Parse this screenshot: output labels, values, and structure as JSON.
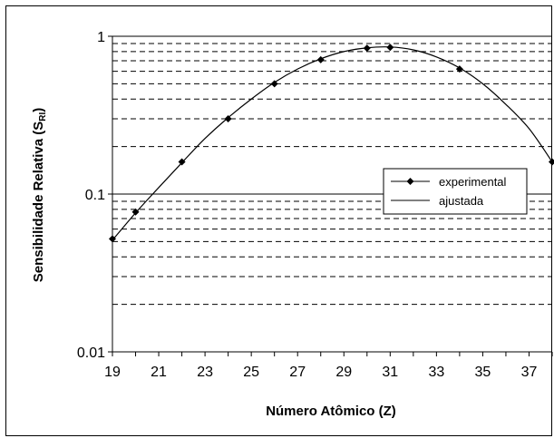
{
  "chart_data": {
    "type": "scatter",
    "xlabel": "Número Atômico (Z)",
    "ylabel_main": "Sensibilidade Relativa (S",
    "ylabel_sub": "RI",
    "ylabel_close": ")",
    "x_ticks": [
      "19",
      "21",
      "23",
      "25",
      "27",
      "29",
      "31",
      "33",
      "35",
      "37"
    ],
    "y_ticks": [
      "0.01",
      "0.1",
      "1"
    ],
    "xlim": [
      19,
      38
    ],
    "ylim": [
      0.01,
      1
    ],
    "y_scale": "log",
    "grid": "dashed minor horizontal gridlines, solid at decades",
    "legend_position": "right",
    "series": [
      {
        "name": "experimental",
        "marker": "diamond",
        "x": [
          19,
          20,
          22,
          24,
          26,
          28,
          30,
          31,
          34,
          38
        ],
        "y": [
          0.052,
          0.077,
          0.16,
          0.3,
          0.5,
          0.71,
          0.84,
          0.85,
          0.62,
          0.16
        ]
      },
      {
        "name": "ajustada",
        "marker": "line",
        "x": [
          19,
          20,
          21,
          22,
          23,
          24,
          25,
          26,
          27,
          28,
          29,
          30,
          31,
          32,
          33,
          34,
          35,
          36,
          37,
          38
        ],
        "y": [
          0.051,
          0.076,
          0.11,
          0.158,
          0.225,
          0.305,
          0.4,
          0.51,
          0.62,
          0.72,
          0.8,
          0.845,
          0.855,
          0.82,
          0.74,
          0.63,
          0.5,
          0.37,
          0.26,
          0.16
        ]
      }
    ]
  }
}
